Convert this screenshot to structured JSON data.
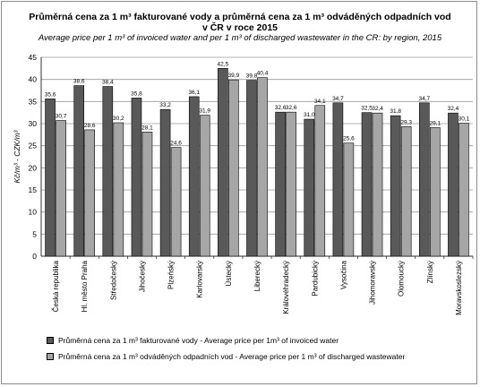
{
  "chart_data": {
    "type": "bar",
    "title": "Průměrná cena za 1 m³ fakturované vody a průměrná cena za 1 m³ odváděných odpadních vod",
    "title_line2": "v ČR v roce 2015",
    "subtitle": "Average price per 1 m³ of invoiced water and per 1 m³ of discharged wastewater in the CR: by region, 2015",
    "xlabel": "",
    "ylabel": "Kč/m³ - CZK/m³",
    "ylim": [
      0,
      45
    ],
    "yticks": [
      0,
      5,
      10,
      15,
      20,
      25,
      30,
      35,
      40,
      45
    ],
    "ytick_labels": [
      "0",
      "5",
      "10",
      "15",
      "20",
      "25",
      "30",
      "35",
      "40",
      "45"
    ],
    "grid": true,
    "legend_position": "bottom",
    "categories": [
      "Česká republika",
      "Hl. město Praha",
      "Středočeský",
      "Jihočeský",
      "Plzeňský",
      "Karlovarský",
      "Ústecký",
      "Liberecký",
      "Královéhradecký",
      "Pardubický",
      "Vysočina",
      "Jihomoravský",
      "Olomoucký",
      "Zlínský",
      "Moravskoslezský"
    ],
    "series": [
      {
        "name": "Průměrná cena za 1 m³ fakturované vody - Average price per 1 m³ of invoiced water",
        "color": "#595959",
        "values": [
          35.6,
          38.6,
          38.4,
          35.8,
          33.2,
          36.1,
          42.5,
          39.8,
          32.6,
          31.0,
          34.7,
          32.5,
          31.8,
          34.7,
          32.4
        ],
        "labels": [
          "35,6",
          "38,6",
          "38,4",
          "35,8",
          "33,2",
          "36,1",
          "42,5",
          "39,8",
          "32,6",
          "31,0",
          "34,7",
          "32,5",
          "31,8",
          "34,7",
          "32,4"
        ]
      },
      {
        "name": "Průměrná cena za 1 m³ odváděných odpadních vod - Average price per 1 m³ of discharged wastewater",
        "color": "#a6a6a6",
        "values": [
          30.7,
          28.6,
          30.2,
          28.1,
          24.6,
          31.9,
          39.9,
          40.4,
          32.6,
          34.1,
          25.6,
          32.4,
          29.3,
          29.1,
          30.1
        ],
        "labels": [
          "30,7",
          "28,6",
          "30,2",
          "28,1",
          "24,6",
          "31,9",
          "39,9",
          "40,4",
          "32,6",
          "34,1",
          "25,6",
          "32,4",
          "29,3",
          "29,1",
          "30,1"
        ]
      }
    ]
  },
  "legend": {
    "item1": "Průměrná cena za 1 m³ fakturované vody  - Average price per 1m³ of invoiced water",
    "item2": "Průměrná cena za 1 m³ odváděných odpadních vod  - Average price per 1 m³ of discharged wastewater"
  }
}
